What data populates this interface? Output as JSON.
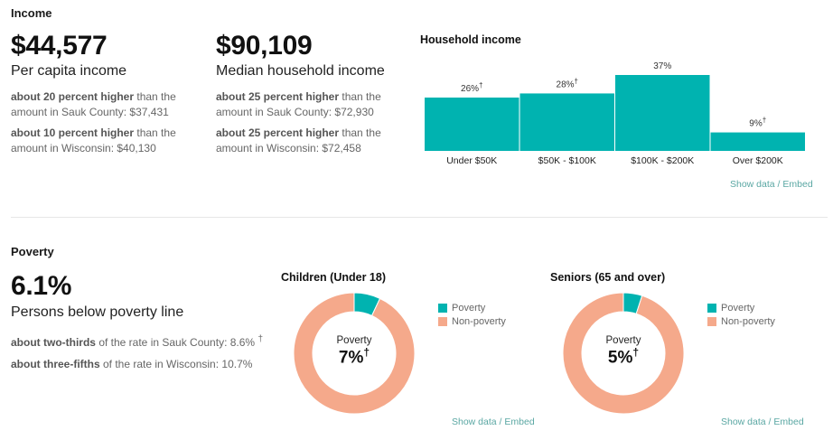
{
  "income": {
    "section_title": "Income",
    "per_capita": {
      "value": "$44,577",
      "label": "Per capita income",
      "cmp1_bold": "about 20 percent higher",
      "cmp1_rest": " than the amount in Sauk County: $37,431",
      "cmp2_bold": "about 10 percent higher",
      "cmp2_rest": " than the amount in Wisconsin: $40,130"
    },
    "median_household": {
      "value": "$90,109",
      "label": "Median household income",
      "cmp1_bold": "about 25 percent higher",
      "cmp1_rest": " than the amount in Sauk County: $72,930",
      "cmp2_bold": "about 25 percent higher",
      "cmp2_rest": " than the amount in Wisconsin: $72,458"
    }
  },
  "poverty": {
    "section_title": "Poverty",
    "value": "6.1%",
    "label": "Persons below poverty line",
    "cmp1_bold": "about two-thirds",
    "cmp1_rest": " of the rate in Sauk County: 8.6%",
    "cmp1_mark": "†",
    "cmp2_bold": "about three-fifths",
    "cmp2_rest": " of the rate in Wisconsin: 10.7%"
  },
  "links": {
    "show_data": "Show data",
    "separator": " / ",
    "embed": "Embed"
  },
  "colors": {
    "teal": "#00b3b0",
    "salmon": "#f5a98b",
    "link": "#5aa7a3"
  },
  "chart_data": [
    {
      "type": "bar",
      "title": "Household income",
      "categories": [
        "Under $50K",
        "$50K - $100K",
        "$100K - $200K",
        "Over $200K"
      ],
      "values": [
        26,
        28,
        37,
        9
      ],
      "value_labels": [
        "26%",
        "28%",
        "37%",
        "9%"
      ],
      "markers": [
        "†",
        "†",
        "",
        "†"
      ],
      "ylim": [
        0,
        37
      ]
    },
    {
      "type": "pie",
      "title": "Children (Under 18)",
      "labels": [
        "Poverty",
        "Non-poverty"
      ],
      "values": [
        7,
        93
      ],
      "center_label": "Poverty",
      "center_value": "7%",
      "center_marker": "†"
    },
    {
      "type": "pie",
      "title": "Seniors (65 and over)",
      "labels": [
        "Poverty",
        "Non-poverty"
      ],
      "values": [
        5,
        95
      ],
      "center_label": "Poverty",
      "center_value": "5%",
      "center_marker": "†"
    }
  ]
}
